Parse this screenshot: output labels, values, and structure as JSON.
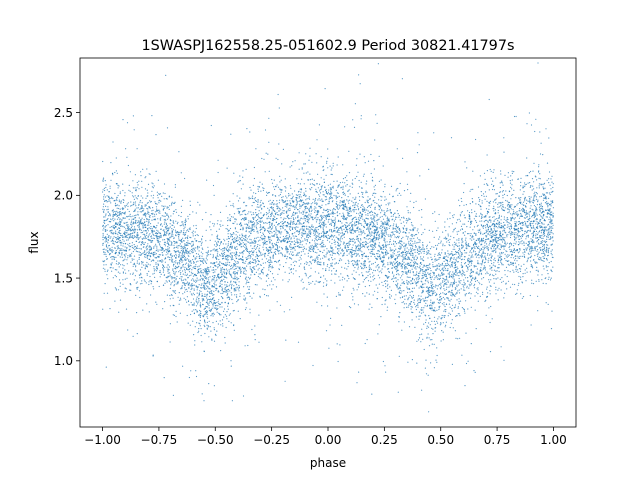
{
  "chart_data": {
    "type": "scatter",
    "title": "1SWASPJ162558.25-051602.9 Period 30821.41797s",
    "xlabel": "phase",
    "ylabel": "flux",
    "xlim": [
      -1.1,
      1.1
    ],
    "ylim": [
      0.6,
      2.83
    ],
    "xticks": [
      -1.0,
      -0.75,
      -0.5,
      -0.25,
      0.0,
      0.25,
      0.5,
      0.75,
      1.0
    ],
    "xtick_labels": [
      "−1.00",
      "−0.75",
      "−0.50",
      "−0.25",
      "0.00",
      "0.25",
      "0.50",
      "0.75",
      "1.00"
    ],
    "yticks": [
      1.0,
      1.5,
      2.0,
      2.5
    ],
    "ytick_labels": [
      "1.0",
      "1.5",
      "2.0",
      "2.5"
    ],
    "grid": false,
    "marker_color": "#1f77b4",
    "phase_range": [
      -1.0,
      1.0
    ],
    "light_curve_profile": {
      "phase": [
        -1.0,
        -0.875,
        -0.75,
        -0.625,
        -0.55,
        -0.5,
        -0.375,
        -0.25,
        -0.125,
        0.0,
        0.125,
        0.25,
        0.375,
        0.45,
        0.5,
        0.625,
        0.75,
        0.875,
        1.0
      ],
      "flux": [
        1.8,
        1.78,
        1.74,
        1.62,
        1.45,
        1.5,
        1.68,
        1.78,
        1.82,
        1.82,
        1.78,
        1.72,
        1.58,
        1.42,
        1.48,
        1.66,
        1.76,
        1.8,
        1.82
      ]
    },
    "scatter_stddev": 0.16
  }
}
